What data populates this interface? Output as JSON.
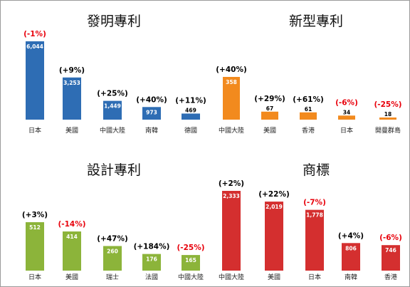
{
  "chart_data": [
    {
      "type": "bar",
      "title": "發明專利",
      "categories": [
        "日本",
        "美國",
        "中國大陸",
        "南韓",
        "德國"
      ],
      "values": [
        6044,
        3253,
        1449,
        973,
        469
      ],
      "value_labels": [
        "6,044",
        "3,253",
        "1,449",
        "973",
        "469"
      ],
      "changes": [
        "(-1%)",
        "(+9%)",
        "(+25%)",
        "(+40%)",
        "(+11%)"
      ],
      "change_colors": [
        "#e8000b",
        "#000000",
        "#000000",
        "#000000",
        "#000000"
      ],
      "color": "#2e6db4",
      "ylim": [
        0,
        6044
      ],
      "grid": false
    },
    {
      "type": "bar",
      "title": "新型專利",
      "categories": [
        "中國大陸",
        "美國",
        "香港",
        "日本",
        "開曼群島"
      ],
      "values": [
        358,
        67,
        61,
        34,
        18
      ],
      "value_labels": [
        "358",
        "67",
        "61",
        "34",
        "18"
      ],
      "changes": [
        "(+40%)",
        "(+29%)",
        "(+61%)",
        "(-6%)",
        "(-25%)"
      ],
      "change_colors": [
        "#000000",
        "#000000",
        "#000000",
        "#e8000b",
        "#e8000b"
      ],
      "color": "#f28a1e",
      "ylim": [
        0,
        358
      ],
      "grid": false
    },
    {
      "type": "bar",
      "title": "設計專利",
      "categories": [
        "日本",
        "美國",
        "瑞士",
        "法國",
        "中國大陸"
      ],
      "values": [
        512,
        414,
        260,
        176,
        165
      ],
      "value_labels": [
        "512",
        "414",
        "260",
        "176",
        "165"
      ],
      "changes": [
        "(+3%)",
        "(-14%)",
        "(+47%)",
        "(+184%)",
        "(-25%)"
      ],
      "change_colors": [
        "#000000",
        "#e8000b",
        "#000000",
        "#000000",
        "#e8000b"
      ],
      "color": "#8cb43a",
      "ylim": [
        0,
        512
      ],
      "grid": false
    },
    {
      "type": "bar",
      "title": "商標",
      "categories": [
        "中國大陸",
        "美國",
        "日本",
        "南韓",
        "香港"
      ],
      "values": [
        2333,
        2019,
        1778,
        806,
        746
      ],
      "value_labels": [
        "2,333",
        "2,019",
        "1,778",
        "806",
        "746"
      ],
      "changes": [
        "(+2%)",
        "(+22%)",
        "(-7%)",
        "(+4%)",
        "(-6%)"
      ],
      "change_colors": [
        "#000000",
        "#000000",
        "#e8000b",
        "#000000",
        "#e8000b"
      ],
      "color": "#d42f2f",
      "ylim": [
        0,
        2333
      ],
      "grid": false
    }
  ]
}
